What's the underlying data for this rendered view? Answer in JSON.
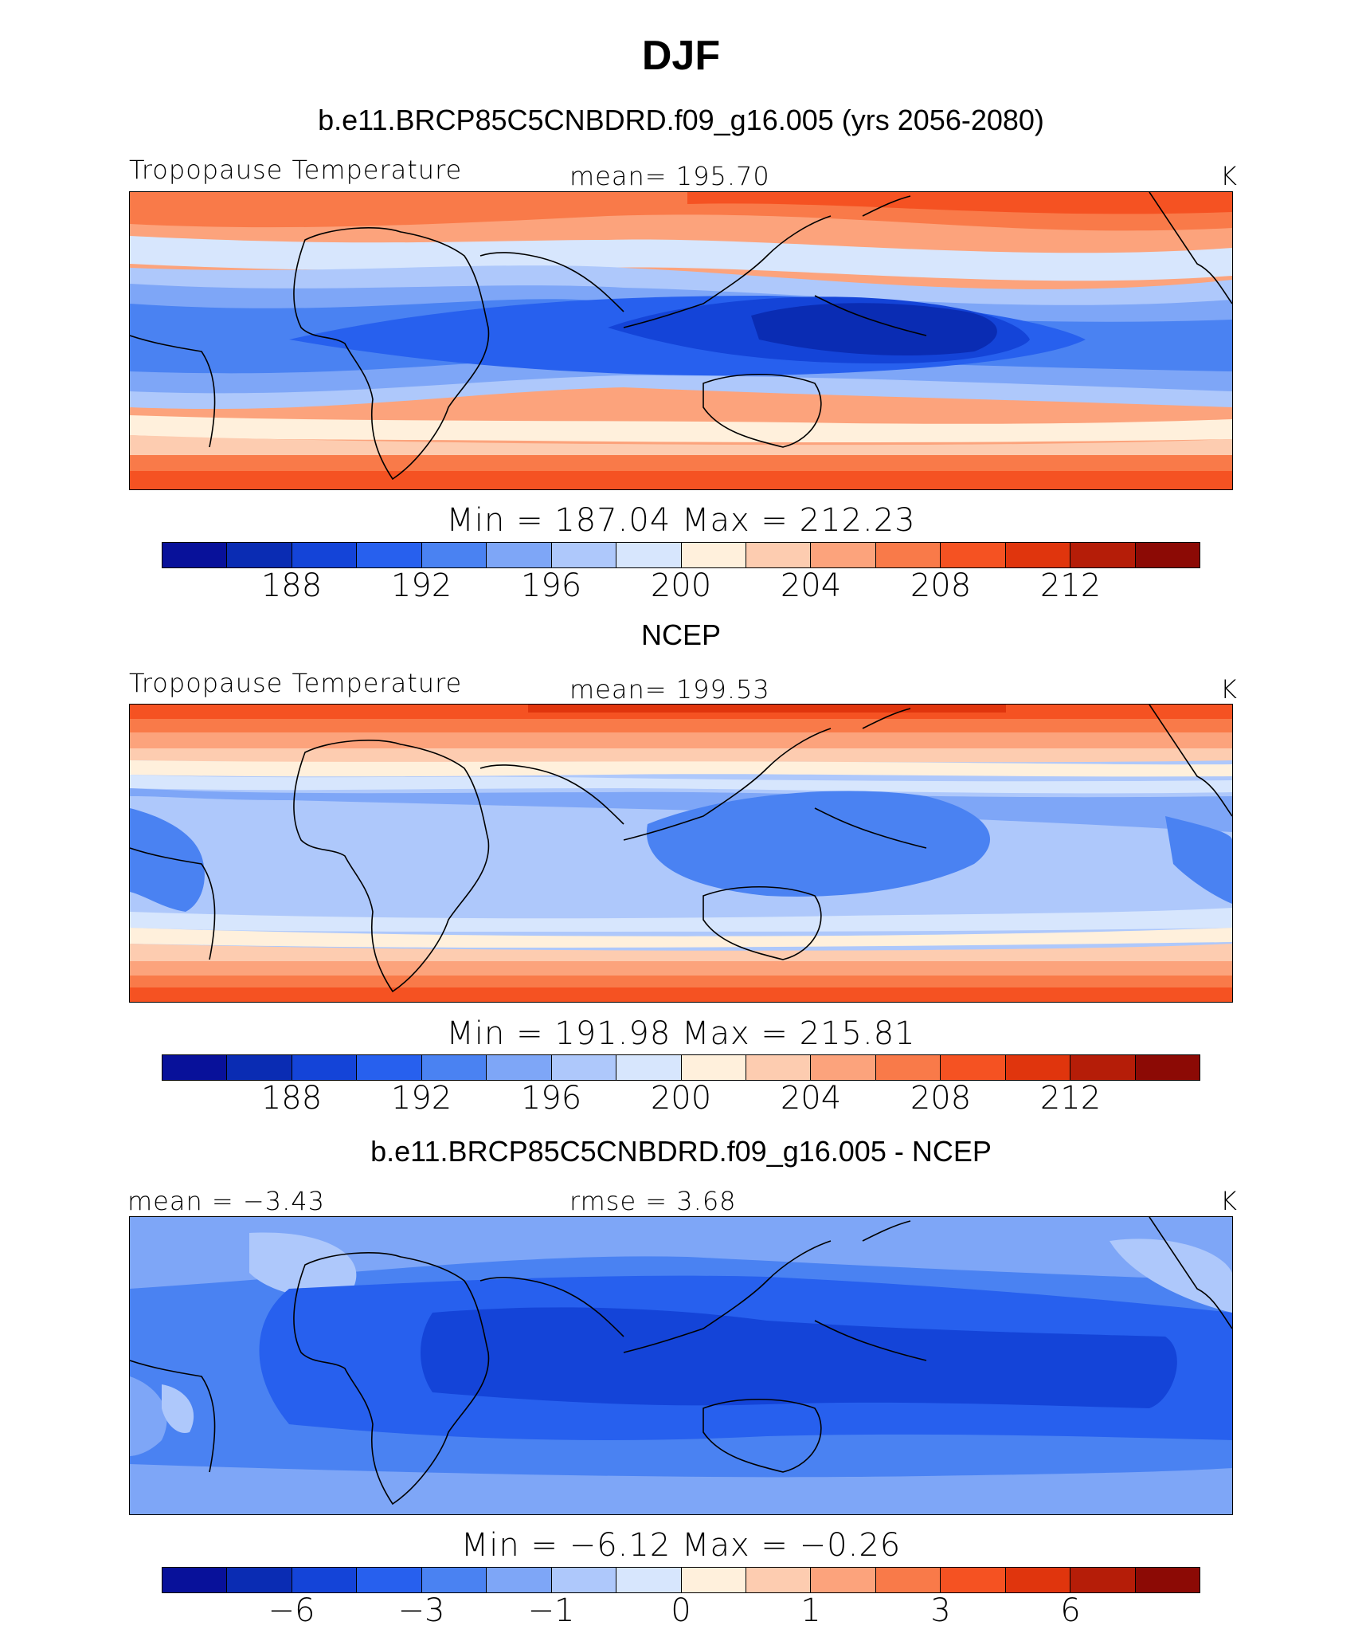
{
  "title": "DJF",
  "colors": [
    "#08119a",
    "#0a2cb3",
    "#1444d8",
    "#2760ee",
    "#4a82f2",
    "#7ea6f7",
    "#aec8fb",
    "#d7e6fd",
    "#fff0dc",
    "#fdccb0",
    "#fca37c",
    "#f97a49",
    "#f55222",
    "#e0350d",
    "#b51d08",
    "#8c0a05"
  ],
  "panels": [
    {
      "title": "b.e11.BRCP85C5CNBDRD.f09_g16.005 (yrs 2056-2080)",
      "left_label": "Tropopause Temperature",
      "center_label": "mean= 195.70",
      "right_label": "K",
      "stats": "Min = 187.04 Max = 212.23",
      "ticks": [
        "188",
        "192",
        "196",
        "200",
        "204",
        "208",
        "212"
      ]
    },
    {
      "title": "NCEP",
      "left_label": "Tropopause Temperature",
      "center_label": "mean= 199.53",
      "right_label": "K",
      "stats": "Min = 191.98 Max = 215.81",
      "ticks": [
        "188",
        "192",
        "196",
        "200",
        "204",
        "208",
        "212"
      ]
    },
    {
      "title": "b.e11.BRCP85C5CNBDRD.f09_g16.005 - NCEP",
      "left_label": "mean =   −3.43",
      "center_label": "rmse =     3.68",
      "right_label": "K",
      "stats": "Min =   −6.12 Max =   −0.26",
      "ticks": [
        "−6",
        "−3",
        "−1",
        "0",
        "1",
        "3",
        "6"
      ]
    }
  ]
}
